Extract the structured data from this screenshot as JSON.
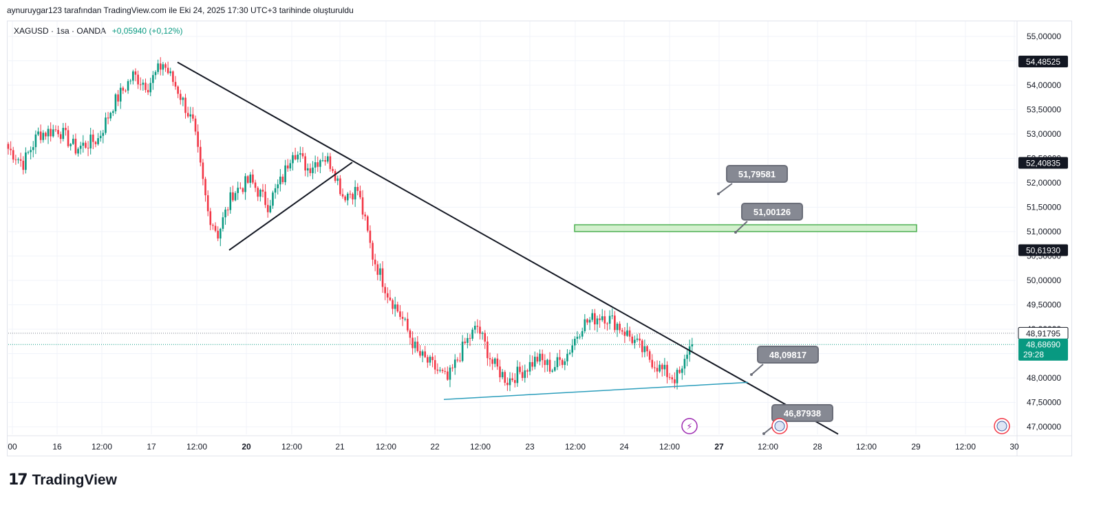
{
  "header": {
    "caption": "aynuruygar123 tarafından TradingView.com ile Eki 24, 2025 17:30 UTC+3 tarihinde oluşturuldu"
  },
  "legend": {
    "symbol": "XAGUSD · 1sa · OANDA",
    "change": "+0,05940 (+0,12%)"
  },
  "brand": {
    "name": "TradingView"
  },
  "colors": {
    "up": "#089981",
    "down": "#f23645",
    "trend": "#131722",
    "support": "#2a9dbb",
    "zone_fill": "#c8ecc0",
    "zone_border": "#4caf50",
    "callout": "#868993"
  },
  "chart_data": {
    "type": "candlestick",
    "symbol": "XAGUSD",
    "interval": "1sa",
    "ylim": [
      46.85,
      55.2
    ],
    "y_ticks": [
      "55,00000",
      "54,50000",
      "54,00000",
      "53,50000",
      "53,00000",
      "52,50000",
      "52,00000",
      "51,50000",
      "51,00000",
      "50,50000",
      "50,00000",
      "49,50000",
      "49,00000",
      "48,50000",
      "48,00000",
      "47,50000",
      "47,00000"
    ],
    "y_tick_values": [
      55,
      54.5,
      54,
      53.5,
      53,
      52.5,
      52,
      51.5,
      51,
      50.5,
      50,
      49.5,
      49,
      48.5,
      48,
      47.5,
      47
    ],
    "x_ticks": [
      "00",
      "16",
      "12:00",
      "17",
      "12:00",
      "20",
      "12:00",
      "21",
      "12:00",
      "22",
      "12:00",
      "23",
      "12:00",
      "24",
      "12:00",
      "27",
      "12:00",
      "28",
      "12:00",
      "29",
      "12:00",
      "30"
    ],
    "bold_x_ticks": [
      "20",
      "27"
    ],
    "price_labels": [
      {
        "text": "54,48525",
        "value": 54.48525,
        "style": "dark"
      },
      {
        "text": "52,40835",
        "value": 52.40835,
        "style": "dark"
      },
      {
        "text": "50,61930",
        "value": 50.6193,
        "style": "dark"
      },
      {
        "text": "48,91795",
        "value": 48.91795,
        "style": "light"
      },
      {
        "text": "48,68690",
        "value": 48.6869,
        "style": "green"
      }
    ],
    "countdown": "29:28",
    "callouts": [
      {
        "text": "51,79581",
        "value": 51.79581
      },
      {
        "text": "51,00126",
        "value": 51.00126
      },
      {
        "text": "48,09817",
        "value": 48.09817
      },
      {
        "text": "46,87938",
        "value": 46.87938
      }
    ],
    "target_zone": {
      "low": 51.0,
      "high": 51.14
    },
    "last_price": 48.6869,
    "dotted_level": 48.91795,
    "anchors": [
      {
        "bar": 0,
        "price": 52.7
      },
      {
        "bar": 6,
        "price": 52.4
      },
      {
        "bar": 12,
        "price": 53.0
      },
      {
        "bar": 20,
        "price": 53.1
      },
      {
        "bar": 27,
        "price": 52.7
      },
      {
        "bar": 36,
        "price": 52.9
      },
      {
        "bar": 42,
        "price": 53.6
      },
      {
        "bar": 50,
        "price": 54.2
      },
      {
        "bar": 56,
        "price": 54.0
      },
      {
        "bar": 62,
        "price": 54.45
      },
      {
        "bar": 68,
        "price": 53.9
      },
      {
        "bar": 74,
        "price": 53.2
      },
      {
        "bar": 80,
        "price": 51.4
      },
      {
        "bar": 84,
        "price": 50.95
      },
      {
        "bar": 90,
        "price": 51.8
      },
      {
        "bar": 97,
        "price": 52.05
      },
      {
        "bar": 104,
        "price": 51.55
      },
      {
        "bar": 110,
        "price": 52.1
      },
      {
        "bar": 114,
        "price": 52.7
      },
      {
        "bar": 120,
        "price": 52.3
      },
      {
        "bar": 126,
        "price": 52.55
      },
      {
        "bar": 130,
        "price": 52.35
      },
      {
        "bar": 134,
        "price": 51.75
      },
      {
        "bar": 140,
        "price": 51.85
      },
      {
        "bar": 146,
        "price": 50.5
      },
      {
        "bar": 152,
        "price": 49.75
      },
      {
        "bar": 158,
        "price": 49.2
      },
      {
        "bar": 164,
        "price": 48.5
      },
      {
        "bar": 171,
        "price": 48.2
      },
      {
        "bar": 176,
        "price": 47.95
      },
      {
        "bar": 183,
        "price": 48.7
      },
      {
        "bar": 188,
        "price": 49.05
      },
      {
        "bar": 194,
        "price": 48.3
      },
      {
        "bar": 200,
        "price": 47.95
      },
      {
        "bar": 206,
        "price": 48.15
      },
      {
        "bar": 212,
        "price": 48.4
      },
      {
        "bar": 218,
        "price": 48.2
      },
      {
        "bar": 224,
        "price": 48.5
      },
      {
        "bar": 230,
        "price": 49.1
      },
      {
        "bar": 238,
        "price": 49.3
      },
      {
        "bar": 244,
        "price": 49.1
      },
      {
        "bar": 250,
        "price": 48.8
      },
      {
        "bar": 256,
        "price": 48.45
      },
      {
        "bar": 262,
        "price": 48.15
      },
      {
        "bar": 267,
        "price": 48.0
      },
      {
        "bar": 270,
        "price": 48.1
      },
      {
        "bar": 272,
        "price": 48.55
      },
      {
        "bar": 274,
        "price": 48.69
      }
    ]
  }
}
